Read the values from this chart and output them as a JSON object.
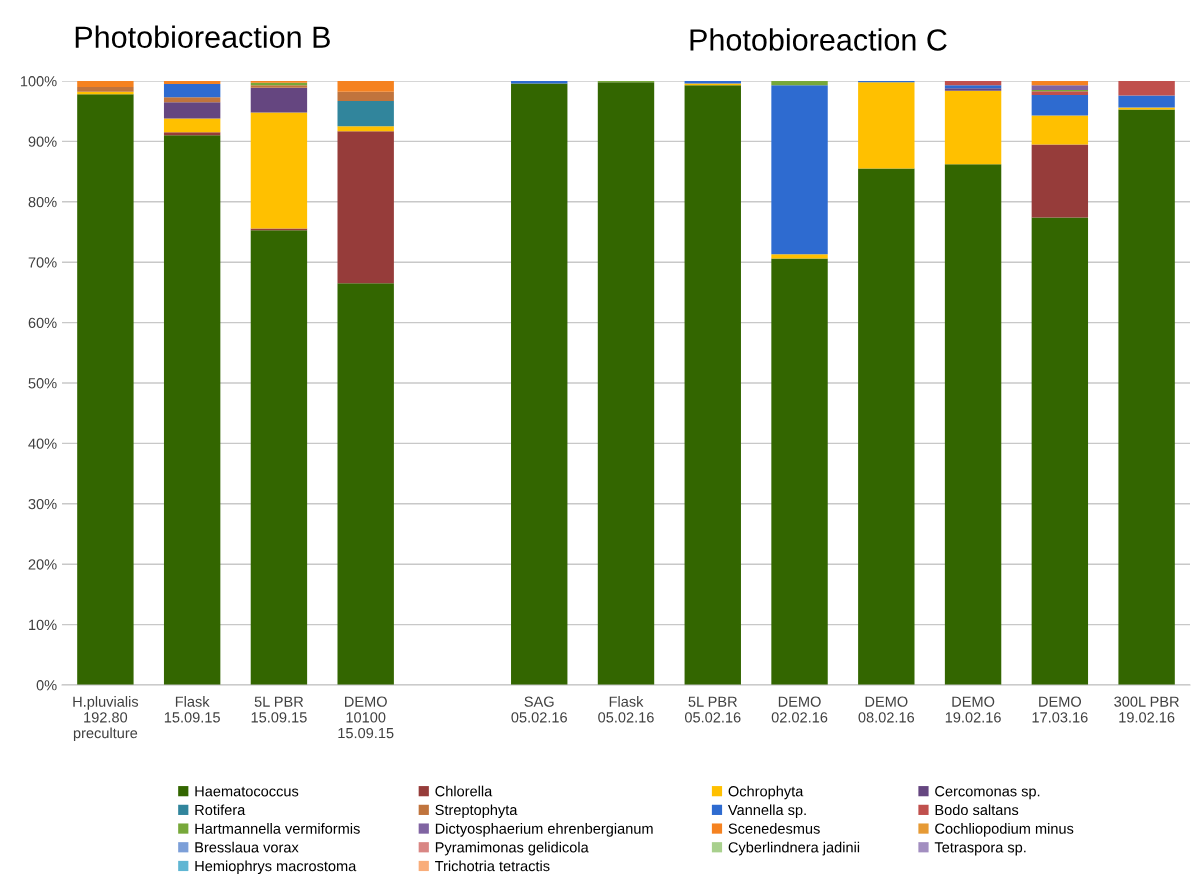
{
  "chart_data": {
    "type": "bar",
    "stacked": true,
    "title": "Photobioreaction B",
    "annotations": [
      "Photobioreaction C"
    ],
    "categories": [
      "H.pluvialis\n192.80\npreculture",
      "Flask\n15.09.15",
      "5L PBR\n15.09.15",
      "DEMO\n10100\n15.09.15",
      null,
      "SAG\n05.02.16",
      "Flask\n05.02.16",
      "5L PBR\n05.02.16",
      "DEMO\n02.02.16",
      "DEMO\n08.02.16",
      "DEMO\n19.02.16",
      "DEMO\n17.03.16",
      "300L PBR\n19.02.16"
    ],
    "ylim": [
      0,
      100
    ],
    "yticks": [
      {
        "value": 0,
        "label": "0%"
      },
      {
        "value": 10,
        "label": "10%"
      },
      {
        "value": 20,
        "label": "20%"
      },
      {
        "value": 30,
        "label": "30%"
      },
      {
        "value": 40,
        "label": "40%"
      },
      {
        "value": 50,
        "label": "50%"
      },
      {
        "value": 60,
        "label": "60%"
      },
      {
        "value": 70,
        "label": "70%"
      },
      {
        "value": 80,
        "label": "80%"
      },
      {
        "value": 90,
        "label": "90%"
      },
      {
        "value": 100,
        "label": "100%"
      }
    ],
    "grid": "y",
    "legend": "bottom",
    "series": [
      {
        "name": "Haematococcus",
        "color": "#336600",
        "values": [
          97.8,
          91,
          75.3,
          66.5,
          null,
          99.6,
          99.8,
          99.3,
          70.6,
          85.5,
          86.2,
          77.4,
          95.3
        ]
      },
      {
        "name": "Chlorella",
        "color": "#963c3a",
        "values": [
          null,
          0.5,
          0.3,
          25.2,
          null,
          null,
          null,
          null,
          null,
          null,
          null,
          12.1,
          null
        ]
      },
      {
        "name": "Ochrophyta",
        "color": "#ffc000",
        "values": [
          0.4,
          2.3,
          19.2,
          0.8,
          null,
          null,
          null,
          0.3,
          0.7,
          14.3,
          12.2,
          4.8,
          0.3
        ]
      },
      {
        "name": "Cercomonas sp.",
        "color": "#654680",
        "values": [
          null,
          2.7,
          4.1,
          null,
          null,
          null,
          null,
          null,
          null,
          null,
          0.4,
          null,
          null
        ]
      },
      {
        "name": "Rotifera",
        "color": "#31859c",
        "values": [
          null,
          null,
          null,
          4.2,
          null,
          null,
          null,
          null,
          null,
          null,
          null,
          null,
          null
        ]
      },
      {
        "name": "Streptophyta",
        "color": "#c0743d",
        "values": [
          0.8,
          0.8,
          0.4,
          1.5,
          null,
          null,
          null,
          null,
          null,
          null,
          null,
          null,
          null
        ]
      },
      {
        "name": "Vannella sp.",
        "color": "#2e6bd0",
        "values": [
          null,
          2.2,
          null,
          null,
          null,
          0.4,
          null,
          0.4,
          28.0,
          0.2,
          0.5,
          3.4,
          2.0
        ]
      },
      {
        "name": "Bodo saltans",
        "color": "#c0504d",
        "values": [
          null,
          null,
          null,
          null,
          null,
          null,
          null,
          null,
          null,
          null,
          0.7,
          0.6,
          2.4
        ]
      },
      {
        "name": "Hartmannella vermiformis",
        "color": "#77a83a",
        "values": [
          null,
          null,
          0.4,
          null,
          null,
          null,
          0.2,
          null,
          0.7,
          null,
          null,
          0.2,
          null
        ]
      },
      {
        "name": "Dictyosphaerium ehrenbergianum",
        "color": "#8064a2",
        "values": [
          null,
          null,
          null,
          null,
          null,
          null,
          null,
          null,
          null,
          null,
          null,
          0.8,
          null
        ]
      },
      {
        "name": "Scenedesmus",
        "color": "#f58220",
        "values": [
          1.0,
          0.5,
          0.3,
          1.8,
          null,
          null,
          null,
          null,
          null,
          null,
          null,
          0.7,
          null
        ]
      },
      {
        "name": "Cochliopodium minus",
        "color": "#e69a35",
        "values": [
          null,
          null,
          null,
          null,
          null,
          null,
          null,
          null,
          null,
          null,
          null,
          null,
          null
        ]
      },
      {
        "name": "Bresslaua vorax",
        "color": "#7c9fd8",
        "values": [
          null,
          null,
          null,
          null,
          null,
          null,
          null,
          null,
          null,
          null,
          null,
          null,
          null
        ]
      },
      {
        "name": "Pyramimonas gelidicola",
        "color": "#d98684",
        "values": [
          null,
          null,
          null,
          null,
          null,
          null,
          null,
          null,
          null,
          null,
          null,
          null,
          null
        ]
      },
      {
        "name": "Cyberlindnera jadinii",
        "color": "#a8d08d",
        "values": [
          null,
          null,
          null,
          null,
          null,
          null,
          null,
          null,
          null,
          null,
          null,
          null,
          null
        ]
      },
      {
        "name": "Tetraspora sp.",
        "color": "#a28ec0",
        "values": [
          null,
          null,
          null,
          null,
          null,
          null,
          null,
          null,
          null,
          null,
          null,
          null,
          null
        ]
      },
      {
        "name": "Hemiophrys macrostoma",
        "color": "#5fb6d3",
        "values": [
          null,
          null,
          null,
          null,
          null,
          null,
          null,
          null,
          null,
          null,
          null,
          null,
          null
        ]
      },
      {
        "name": "Trichotria tetractis",
        "color": "#f9ad7a",
        "values": [
          null,
          null,
          null,
          null,
          null,
          null,
          null,
          null,
          null,
          null,
          null,
          null,
          null
        ]
      }
    ]
  }
}
